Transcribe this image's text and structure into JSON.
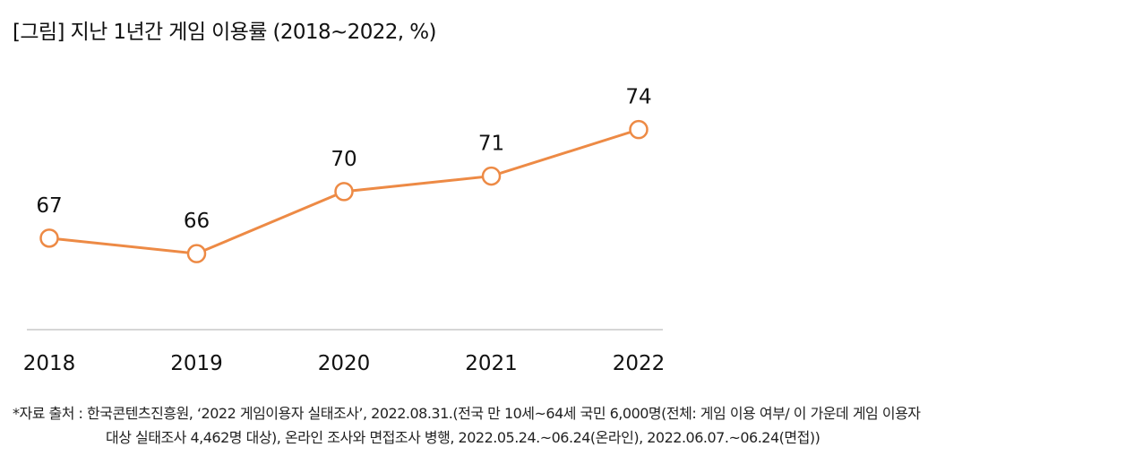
{
  "chart_data": {
    "type": "line",
    "title": "[그림] 지난 1년간 게임 이용률 (2018~2022, %)",
    "categories": [
      "2018",
      "2019",
      "2020",
      "2021",
      "2022"
    ],
    "series": [
      {
        "name": "게임 이용률",
        "values": [
          67,
          66,
          70,
          71,
          74
        ]
      }
    ],
    "data_labels": [
      "67",
      "66",
      "70",
      "71",
      "74"
    ],
    "xlabel": "",
    "ylabel": "",
    "ylim": [
      61.1,
      76.0
    ],
    "grid": false,
    "line_color": "#ED8A45"
  },
  "source": {
    "line1": "*자료 출처 : 한국콘텐츠진흥원, ‘2022 게임이용자 실태조사’, 2022.08.31.(전국 만 10세~64세 국민 6,000명(전체: 게임 이용 여부/ 이 가운데 게임 이용자",
    "line2": "대상 실태조사 4,462명 대상), 온라인 조사와 면접조사 병행, 2022.05.24.~06.24(온라인), 2022.06.07.~06.24(면접))"
  }
}
